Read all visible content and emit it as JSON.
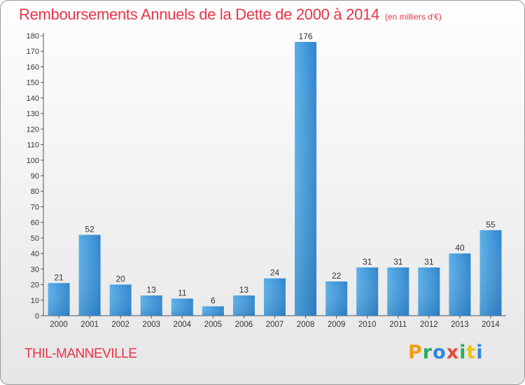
{
  "chart_data": {
    "type": "bar",
    "title": "Remboursements Annuels de la Dette de 2000 à 2014",
    "unit_label": "(en milliers d'€)",
    "categories": [
      "2000",
      "2001",
      "2002",
      "2003",
      "2004",
      "2005",
      "2006",
      "2007",
      "2008",
      "2009",
      "2010",
      "2011",
      "2012",
      "2013",
      "2014"
    ],
    "values": [
      21,
      52,
      20,
      13,
      11,
      6,
      13,
      24,
      176,
      22,
      31,
      31,
      31,
      40,
      55
    ],
    "ylim": [
      0,
      180
    ],
    "yticks": [
      0,
      10,
      20,
      30,
      40,
      50,
      60,
      70,
      80,
      90,
      100,
      110,
      120,
      130,
      140,
      150,
      160,
      170,
      180
    ],
    "grid": false,
    "bar_color": "#3d96dc"
  },
  "footer": {
    "commune": "THIL-MANNEVILLE",
    "logo_text": "Proxiti"
  }
}
